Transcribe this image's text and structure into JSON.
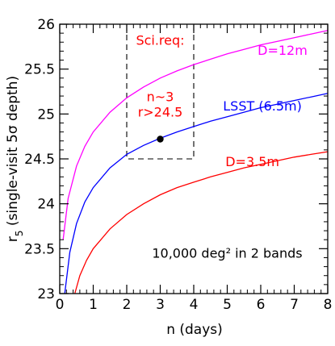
{
  "chart_data": {
    "type": "line",
    "xlabel": "n (days)",
    "ylabel": "r",
    "ylabel_sub": "5",
    "ylabel_rest": " (single-visit 5σ  depth)",
    "xlim": [
      0,
      8
    ],
    "ylim": [
      23,
      26
    ],
    "x_ticks": [
      0,
      1,
      2,
      3,
      4,
      5,
      6,
      7,
      8
    ],
    "x_tick_labels": [
      "0",
      "1",
      "2",
      "3",
      "4",
      "5",
      "6",
      "7",
      "8"
    ],
    "y_ticks": [
      23,
      23.5,
      24,
      24.5,
      25,
      25.5,
      26
    ],
    "y_tick_labels": [
      "23",
      "23.5",
      "24",
      "24.5",
      "25",
      "25.5",
      "26"
    ],
    "grid": false,
    "series": [
      {
        "name": "D=12m",
        "color": "#ff00ff",
        "x": [
          0.1,
          0.25,
          0.5,
          0.75,
          1,
          1.5,
          2,
          2.5,
          3,
          3.5,
          4,
          4.5,
          5,
          5.5,
          6,
          6.5,
          7,
          7.5,
          8
        ],
        "y": [
          23.6,
          24.06,
          24.42,
          24.64,
          24.8,
          25.02,
          25.18,
          25.3,
          25.4,
          25.48,
          25.55,
          25.61,
          25.67,
          25.72,
          25.77,
          25.81,
          25.85,
          25.89,
          25.93
        ]
      },
      {
        "name": "LSST (6.5m)",
        "color": "#0000ff",
        "x": [
          0.15,
          0.3,
          0.5,
          0.75,
          1,
          1.5,
          2,
          2.5,
          3,
          3.5,
          4,
          4.5,
          5,
          5.5,
          6,
          6.5,
          7,
          7.5,
          8
        ],
        "y": [
          23.0,
          23.46,
          23.78,
          24.02,
          24.18,
          24.4,
          24.55,
          24.65,
          24.73,
          24.8,
          24.86,
          24.92,
          24.97,
          25.02,
          25.07,
          25.11,
          25.15,
          25.19,
          25.23
        ]
      },
      {
        "name": "D=3.5m",
        "color": "#ff0000",
        "x": [
          0.45,
          0.6,
          0.8,
          1,
          1.5,
          2,
          2.5,
          3,
          3.5,
          4,
          4.5,
          5,
          5.5,
          6,
          6.5,
          7,
          7.5,
          8
        ],
        "y": [
          23.0,
          23.2,
          23.37,
          23.5,
          23.72,
          23.88,
          24.0,
          24.1,
          24.18,
          24.24,
          24.3,
          24.35,
          24.4,
          24.44,
          24.48,
          24.52,
          24.55,
          24.58
        ]
      }
    ],
    "marker": {
      "x": 3,
      "y": 24.72,
      "color": "#000000"
    },
    "requirement_box": {
      "x": [
        2,
        4
      ],
      "y": [
        24.5,
        26
      ]
    },
    "annotations": [
      {
        "text": "Sci.req:",
        "x": 3.0,
        "y": 25.77,
        "color": "#ff0000"
      },
      {
        "text": "n~3",
        "x": 3.0,
        "y": 25.14,
        "color": "#ff0000"
      },
      {
        "text": "r>24.5",
        "x": 3.0,
        "y": 24.97,
        "color": "#ff0000"
      },
      {
        "text": "D=12m",
        "x": 6.65,
        "y": 25.66,
        "color": "#ff00ff"
      },
      {
        "text": "LSST (6.5m)",
        "x": 6.05,
        "y": 25.04,
        "color": "#0000ff"
      },
      {
        "text": "D=3.5m",
        "x": 5.75,
        "y": 24.42,
        "color": "#ff0000"
      },
      {
        "text": "10,000 deg² in 2 bands",
        "x": 5.0,
        "y": 23.4,
        "color": "#000000"
      }
    ]
  }
}
